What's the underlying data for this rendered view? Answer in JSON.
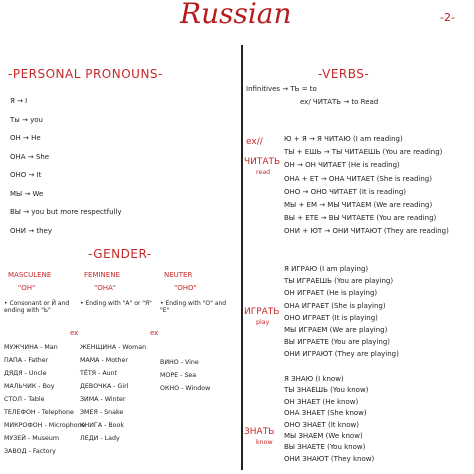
{
  "header": {
    "title": "Russian",
    "page": "-2-"
  },
  "pronouns": {
    "heading": "-PERSONAL PRONOUNS-",
    "items": [
      "Я → I",
      "Ты → you",
      "ОН → He",
      "ОНА → She",
      "ОНО → It",
      "МЫ → We",
      "ВЫ → you but more respectfully",
      "ОНИ → they"
    ]
  },
  "gender": {
    "heading": "-GENDER-",
    "example_label": "ex",
    "columns": [
      {
        "name": "MASCULENE",
        "pronoun": "\"ОН\"",
        "rule": "• Consonant or Й and ending with \"Ь\"",
        "examples": [
          "МУЖЧИНА - Man",
          "ПАПА - Father",
          "ДЯДЯ - Uncle",
          "МАЛЬЧИК - Boy",
          "СТОЛ - Table",
          "ТЕЛЕФОН - Telephone",
          "МИКРОФОН - Microphone",
          "МУЗЕЙ - Museum",
          "ЗАВОД - Factory"
        ]
      },
      {
        "name": "FEMINENE",
        "pronoun": "\"ОНА\"",
        "rule": "• Ending with \"А\" or \"Я\"",
        "examples": [
          "ЖЕНЩИНА - Woman",
          "МАМА - Mother",
          "ТЁТЯ - Aunt",
          "ДЕВОЧКА - Girl",
          "ЗИМА - Winter",
          "ЗМЕЯ - Snake",
          "КНИГА - Book",
          "ЛЕДИ - Lady"
        ]
      },
      {
        "name": "NEUTER",
        "pronoun": "\"ОНО\"",
        "rule": "• Ending with \"О\" and \"Е\"",
        "examples": [
          "ВИНО - Vine",
          "МОРЕ - Sea",
          "ОКНО - Window"
        ]
      }
    ]
  },
  "verbs": {
    "heading": "-VERBS-",
    "infinitive": "Infinitives → ТЬ = to",
    "infinitive_example": "ex/ ЧИТАТЬ → to Read",
    "conjugations": [
      {
        "marker": "ex//",
        "verb": "ЧИТАТЬ",
        "meaning": "read",
        "forms": [
          "Ю + Я → Я ЧИТАЮ (I am reading)",
          "ТЫ + ЕШЬ → ТЫ ЧИТАЕШЬ (You are reading)",
          "ОН → ОН ЧИТАЕТ (He is reading)",
          "ОНА + ЕТ → ОНА ЧИТАЕТ (She is reading)",
          "ОНО → ОНО ЧИТАЕТ (It is reading)",
          "МЫ + ЕМ → МЫ ЧИТАЕМ (We are reading)",
          "ВЫ + ЕТЕ → ВЫ ЧИТАЕТЕ (You are reading)",
          "ОНИ + ЮТ → ОНИ ЧИТАЮТ (They are reading)"
        ]
      },
      {
        "verb": "ИГРАТЬ",
        "meaning": "play",
        "forms": [
          "Я ИГРАЮ (I am playing)",
          "ТЫ ИГРАЕШЬ (You are playing)",
          "ОН ИГРАЕТ (He is playing)",
          "ОНА ИГРАЕТ (She is playing)",
          "ОНО ИГРАЕТ (It is playing)",
          "МЫ ИГРАЕМ (We are playing)",
          "ВЫ ИГРАЕТЕ (You are playing)",
          "ОНИ ИГРАЮТ (They are playing)"
        ]
      },
      {
        "verb": "ЗНАТЬ",
        "meaning": "know",
        "forms": [
          "Я ЗНАЮ (I know)",
          "ТЫ ЗНАЕШЬ (You know)",
          "ОН ЗНАЕТ (He know)",
          "ОНА ЗНАЕТ (She know)",
          "ОНО ЗНАЕТ (It know)",
          "МЫ ЗНАЕМ (We know)",
          "ВЫ ЗНАЕТЕ (You know)",
          "ОНИ ЗНАЮТ (They know)"
        ]
      }
    ]
  }
}
